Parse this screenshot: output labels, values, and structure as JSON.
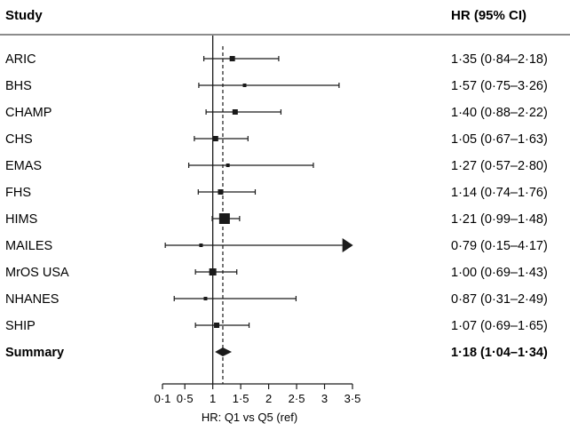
{
  "chart_data": {
    "type": "forest",
    "headers": {
      "study": "Study",
      "estimate": "HR (95% CI)"
    },
    "xlabel": "HR: Q1 vs Q5 (ref)",
    "xlim": [
      0.1,
      3.5
    ],
    "reference_line": 1.0,
    "summary_line": 1.18,
    "x_ticks": [
      {
        "value": 0.1,
        "label": "0·1"
      },
      {
        "value": 0.5,
        "label": "0·5"
      },
      {
        "value": 1.0,
        "label": "1"
      },
      {
        "value": 1.5,
        "label": "1·5"
      },
      {
        "value": 2.0,
        "label": "2"
      },
      {
        "value": 2.5,
        "label": "2·5"
      },
      {
        "value": 3.0,
        "label": "3"
      },
      {
        "value": 3.5,
        "label": "3·5"
      }
    ],
    "studies": [
      {
        "name": "ARIC",
        "hr": 1.35,
        "lo": 0.84,
        "hi": 2.18,
        "label": "1·35 (0·84–2·18)",
        "weight": 2
      },
      {
        "name": "BHS",
        "hr": 1.57,
        "lo": 0.75,
        "hi": 3.26,
        "label": "1·57 (0·75–3·26)",
        "weight": 1
      },
      {
        "name": "CHAMP",
        "hr": 1.4,
        "lo": 0.88,
        "hi": 2.22,
        "label": "1·40 (0·88–2·22)",
        "weight": 2
      },
      {
        "name": "CHS",
        "hr": 1.05,
        "lo": 0.67,
        "hi": 1.63,
        "label": "1·05 (0·67–1·63)",
        "weight": 2
      },
      {
        "name": "EMAS",
        "hr": 1.27,
        "lo": 0.57,
        "hi": 2.8,
        "label": "1·27 (0·57–2·80)",
        "weight": 1
      },
      {
        "name": "FHS",
        "hr": 1.14,
        "lo": 0.74,
        "hi": 1.76,
        "label": "1·14 (0·74–1·76)",
        "weight": 2
      },
      {
        "name": "HIMS",
        "hr": 1.21,
        "lo": 0.99,
        "hi": 1.48,
        "label": "1·21 (0·99–1·48)",
        "weight": 5
      },
      {
        "name": "MAILES",
        "hr": 0.79,
        "lo": 0.15,
        "hi": 4.17,
        "label": "0·79 (0·15–4·17)",
        "weight": 1,
        "clipped_high": true
      },
      {
        "name": "MrOS USA",
        "hr": 1.0,
        "lo": 0.69,
        "hi": 1.43,
        "label": "1·00 (0·69–1·43)",
        "weight": 3
      },
      {
        "name": "NHANES",
        "hr": 0.87,
        "lo": 0.31,
        "hi": 2.49,
        "label": "0·87 (0·31–2·49)",
        "weight": 1
      },
      {
        "name": "SHIP",
        "hr": 1.07,
        "lo": 0.69,
        "hi": 1.65,
        "label": "1·07 (0·69–1·65)",
        "weight": 2
      }
    ],
    "summary": {
      "name": "Summary",
      "hr": 1.18,
      "lo": 1.04,
      "hi": 1.34,
      "label": "1·18 (1·04–1·34)"
    },
    "colors": {
      "ink": "#1a1a1a"
    }
  }
}
